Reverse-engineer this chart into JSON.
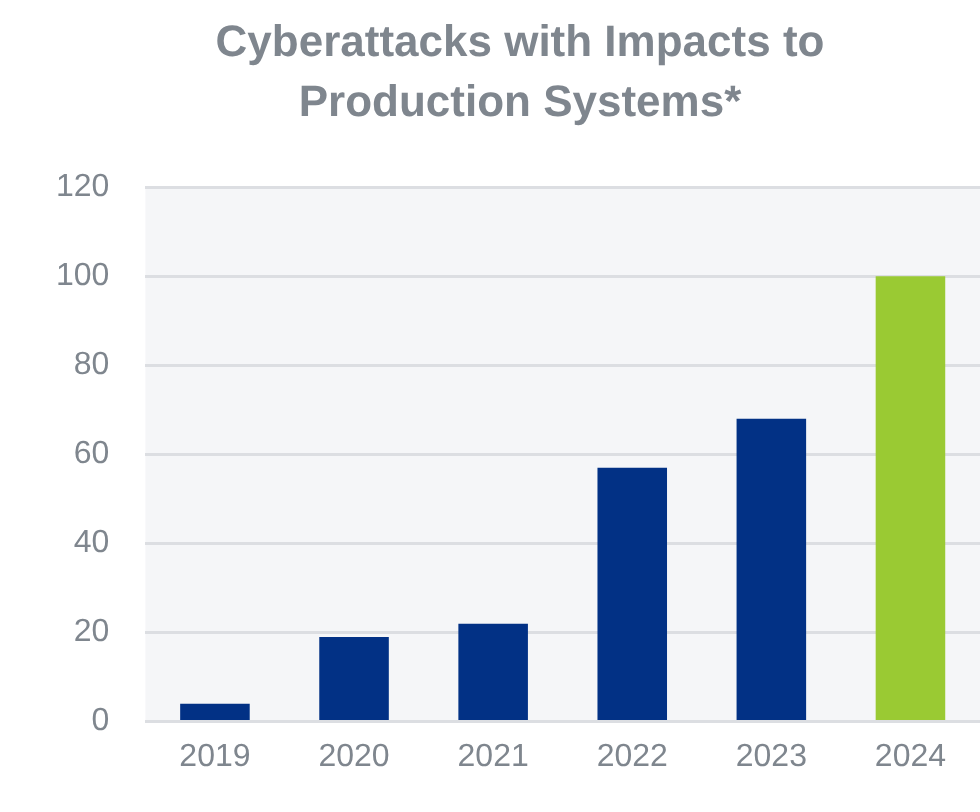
{
  "chart_data": {
    "type": "bar",
    "title": "Cyberattacks with Impacts to Production Systems*",
    "categories": [
      "2019",
      "2020",
      "2021",
      "2022",
      "2023",
      "2024"
    ],
    "values": [
      4,
      19,
      22,
      57,
      68,
      100
    ],
    "colors": [
      "#023185",
      "#023185",
      "#023185",
      "#023185",
      "#023185",
      "#9aca33"
    ],
    "ylim": [
      0,
      120
    ],
    "yticks": [
      0,
      20,
      40,
      60,
      80,
      100,
      120
    ],
    "grid": "y",
    "legend": false
  }
}
